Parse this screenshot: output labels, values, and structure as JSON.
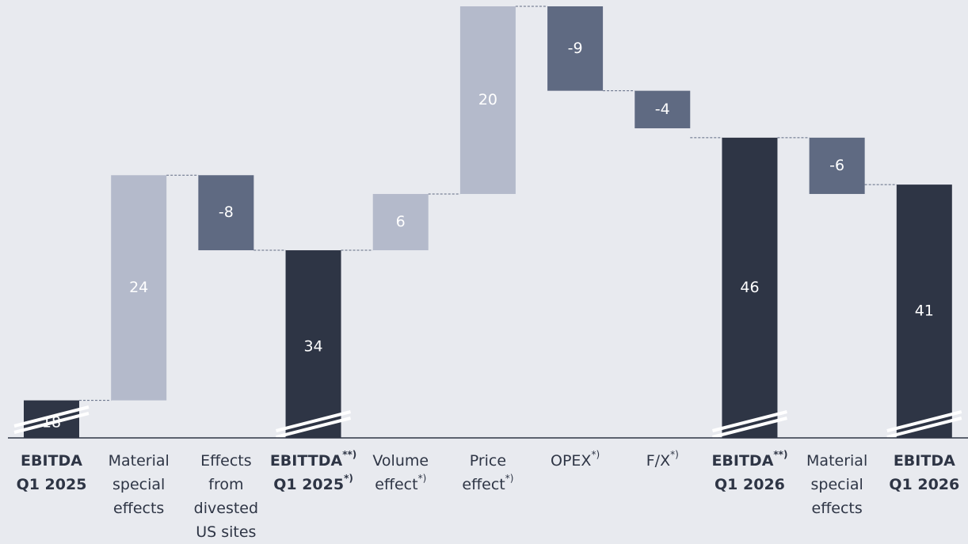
{
  "chart_data": {
    "type": "waterfall",
    "categories": [
      [
        {
          "text": "EBITDA"
        },
        {
          "text": "Q1 2025"
        }
      ],
      [
        {
          "text": "Material"
        },
        {
          "text": "special"
        },
        {
          "text": "effects"
        }
      ],
      [
        {
          "text": "Effects"
        },
        {
          "text": "from"
        },
        {
          "text": "divested"
        },
        {
          "text": "US sites"
        }
      ],
      [
        {
          "text": "EBITTDA",
          "sup": "**)"
        },
        {
          "text": "Q1 2025",
          "sup": "*)"
        }
      ],
      [
        {
          "text": "Volume"
        },
        {
          "text": "effect",
          "sup": "*)"
        }
      ],
      [
        {
          "text": "Price"
        },
        {
          "text": "effect",
          "sup": "*)"
        }
      ],
      [
        {
          "text": "OPEX",
          "sup": "*)"
        }
      ],
      [
        {
          "text": "F/X",
          "sup": "*)"
        }
      ],
      [
        {
          "text": "EBITDA",
          "sup": "**)"
        },
        {
          "text": "Q1 2026"
        }
      ],
      [
        {
          "text": "Material"
        },
        {
          "text": "special"
        },
        {
          "text": "effects"
        }
      ],
      [
        {
          "text": "EBITDA"
        },
        {
          "text": "Q1 2026"
        }
      ]
    ],
    "values": [
      18,
      24,
      -8,
      34,
      6,
      20,
      -9,
      -4,
      46,
      -6,
      41
    ],
    "colors": [
      "#2e3545",
      "#b4bacb",
      "#5f6a82",
      "#2e3545",
      "#b4bacb",
      "#b4bacb",
      "#5f6a82",
      "#5f6a82",
      "#2e3545",
      "#5f6a82",
      "#2e3545"
    ],
    "total_color": "#2e3545",
    "ylim": [
      14,
      60
    ]
  }
}
